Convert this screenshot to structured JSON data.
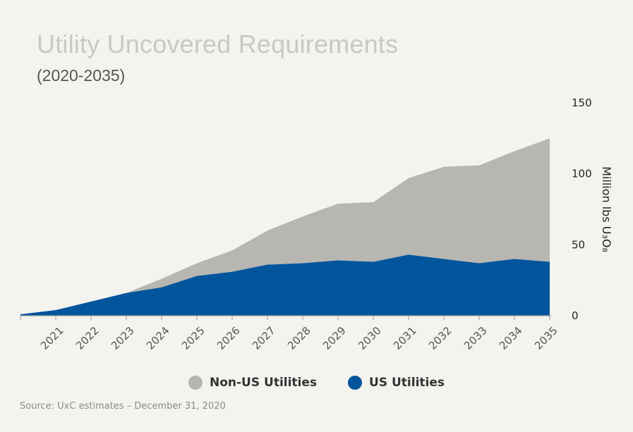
{
  "title": "Utility Uncovered Requirements",
  "subtitle": "(2020-2035)",
  "source": "Source: UxC estimates – December 31, 2020",
  "colors": {
    "non_us": "#b7b6b1",
    "us": "#01559c"
  },
  "chart_data": {
    "type": "area",
    "stacked": true,
    "x": [
      2020,
      2021,
      2022,
      2023,
      2024,
      2025,
      2026,
      2027,
      2028,
      2029,
      2030,
      2031,
      2032,
      2033,
      2034,
      2035
    ],
    "xticks": [
      "2021",
      "2022",
      "2023",
      "2024",
      "2025",
      "2026",
      "2027",
      "2028",
      "2029",
      "2030",
      "2031",
      "2032",
      "2033",
      "2034",
      "2035"
    ],
    "series": [
      {
        "name": "US Utilities",
        "color": "#01559c",
        "values": [
          1,
          4,
          10,
          16,
          20,
          28,
          31,
          36,
          37,
          39,
          38,
          43,
          40,
          37,
          40,
          38
        ]
      },
      {
        "name": "Non-US Utilities",
        "color": "#b7b6b1",
        "values": [
          0,
          0,
          0,
          0,
          6,
          9,
          15,
          24,
          33,
          40,
          42,
          54,
          65,
          69,
          76,
          87
        ]
      }
    ],
    "ylabel": "Million lbs U₃O₈",
    "ylim": [
      0,
      150
    ],
    "yticks": [
      "0",
      "50",
      "100",
      "150"
    ],
    "y_axis_position": "right",
    "grid": false,
    "legend": [
      "Non-US Utilities",
      "US Utilities"
    ],
    "legend_placement": "bottom"
  }
}
